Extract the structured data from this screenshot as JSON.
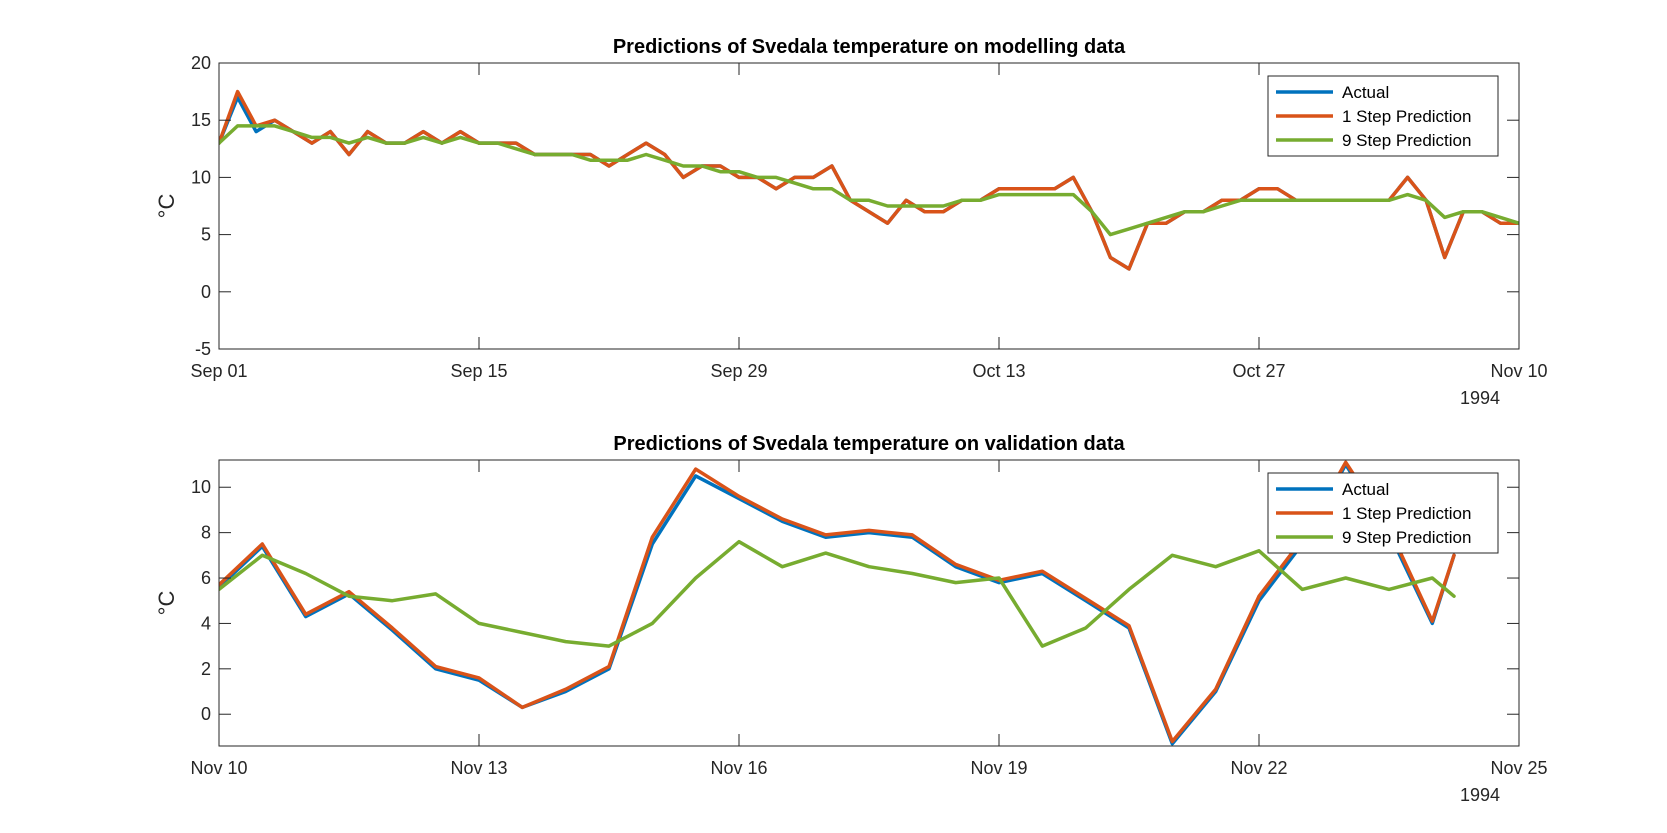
{
  "colors": {
    "actual": "#0072BD",
    "one_step": "#D95319",
    "nine_step": "#77AC30",
    "axis": "#262626"
  },
  "chart_data": [
    {
      "type": "line",
      "title": "Predictions of Svedala temperature on modelling data",
      "ylabel": "°C",
      "xlabel": "",
      "year_label": "1994",
      "xlim": [
        "Sep 01",
        "Nov 10"
      ],
      "ylim": [
        -5,
        20
      ],
      "xticks": [
        "Sep 01",
        "Sep 15",
        "Sep 29",
        "Oct 13",
        "Oct 27",
        "Nov 10"
      ],
      "yticks": [
        "20",
        "15",
        "10",
        "5",
        "0",
        "-5"
      ],
      "grid": false,
      "legend": "top-right",
      "x_sampling": "daily",
      "series": [
        {
          "name": "Actual",
          "start": "Sep 01",
          "values": [
            13,
            17,
            14,
            15,
            14,
            13,
            14,
            12,
            14,
            13,
            13,
            14,
            13,
            14,
            13,
            13,
            13,
            12,
            12,
            12,
            12,
            11,
            12,
            13,
            12,
            10,
            11,
            11,
            10,
            10,
            9,
            10,
            10,
            11,
            8,
            7,
            6,
            8,
            7,
            7,
            8,
            8,
            9,
            9,
            9,
            9,
            10,
            7,
            3,
            2,
            6,
            6,
            7,
            7,
            8,
            8,
            9,
            9,
            8,
            8,
            8,
            8,
            8,
            8,
            10,
            8,
            3,
            7,
            7,
            6,
            6
          ]
        },
        {
          "name": "1 Step Prediction",
          "start": "Sep 01",
          "values": [
            13,
            17.5,
            14.5,
            15,
            14,
            13,
            14,
            12,
            14,
            13,
            13,
            14,
            13,
            14,
            13,
            13,
            13,
            12,
            12,
            12,
            12,
            11,
            12,
            13,
            12,
            10,
            11,
            11,
            10,
            10,
            9,
            10,
            10,
            11,
            8,
            7,
            6,
            8,
            7,
            7,
            8,
            8,
            9,
            9,
            9,
            9,
            10,
            7,
            3,
            2,
            6,
            6,
            7,
            7,
            8,
            8,
            9,
            9,
            8,
            8,
            8,
            8,
            8,
            8,
            10,
            8,
            3,
            7,
            7,
            6,
            6
          ]
        },
        {
          "name": "9 Step Prediction",
          "start": "Sep 01",
          "values": [
            13,
            14.5,
            14.5,
            14.5,
            14,
            13.5,
            13.5,
            13,
            13.5,
            13,
            13,
            13.5,
            13,
            13.5,
            13,
            13,
            12.5,
            12,
            12,
            12,
            11.5,
            11.5,
            11.5,
            12,
            11.5,
            11,
            11,
            10.5,
            10.5,
            10,
            10,
            9.5,
            9,
            9,
            8,
            8,
            7.5,
            7.5,
            7.5,
            7.5,
            8,
            8,
            8.5,
            8.5,
            8.5,
            8.5,
            8.5,
            7,
            5,
            5.5,
            6,
            6.5,
            7,
            7,
            7.5,
            8,
            8,
            8,
            8,
            8,
            8,
            8,
            8,
            8,
            8.5,
            8,
            6.5,
            7,
            7,
            6.5,
            6
          ]
        }
      ]
    },
    {
      "type": "line",
      "title": "Predictions of Svedala temperature on validation data",
      "ylabel": "°C",
      "xlabel": "",
      "year_label": "1994",
      "xlim": [
        "Nov 10",
        "Nov 25"
      ],
      "ylim": [
        -1.4,
        11.2
      ],
      "xticks": [
        "Nov 10",
        "Nov 13",
        "Nov 16",
        "Nov 19",
        "Nov 22",
        "Nov 25"
      ],
      "yticks": [
        "10",
        "8",
        "6",
        "4",
        "2",
        "0"
      ],
      "grid": false,
      "legend": "top-right",
      "series": [
        {
          "name": "Actual",
          "x": [
            "Nov 10",
            "Nov 10 12:00",
            "Nov 11",
            "Nov 11 12:00",
            "Nov 12",
            "Nov 12 12:00",
            "Nov 13",
            "Nov 13 12:00",
            "Nov 14",
            "Nov 14 12:00",
            "Nov 15",
            "Nov 15 12:00",
            "Nov 16",
            "Nov 16 12:00",
            "Nov 17",
            "Nov 17 12:00",
            "Nov 18",
            "Nov 18 12:00",
            "Nov 19",
            "Nov 19 12:00",
            "Nov 20",
            "Nov 20 12:00",
            "Nov 21",
            "Nov 21 12:00",
            "Nov 22",
            "Nov 22 12:00",
            "Nov 23",
            "Nov 23 12:00",
            "Nov 24",
            "Nov 24 06:00"
          ],
          "values": [
            5.6,
            7.4,
            4.3,
            5.3,
            3.7,
            2.0,
            1.5,
            0.3,
            1.0,
            2.0,
            7.5,
            10.5,
            9.5,
            8.5,
            7.8,
            8.0,
            7.8,
            6.5,
            5.8,
            6.2,
            5.0,
            3.8,
            -1.3,
            1.0,
            5.0,
            7.5,
            11.0,
            8.0,
            4.0,
            7.0
          ]
        },
        {
          "name": "1 Step Prediction",
          "x": [
            "Nov 10",
            "Nov 10 12:00",
            "Nov 11",
            "Nov 11 12:00",
            "Nov 12",
            "Nov 12 12:00",
            "Nov 13",
            "Nov 13 12:00",
            "Nov 14",
            "Nov 14 12:00",
            "Nov 15",
            "Nov 15 12:00",
            "Nov 16",
            "Nov 16 12:00",
            "Nov 17",
            "Nov 17 12:00",
            "Nov 18",
            "Nov 18 12:00",
            "Nov 19",
            "Nov 19 12:00",
            "Nov 20",
            "Nov 20 12:00",
            "Nov 21",
            "Nov 21 12:00",
            "Nov 22",
            "Nov 22 12:00",
            "Nov 23",
            "Nov 23 12:00",
            "Nov 24",
            "Nov 24 06:00"
          ],
          "values": [
            5.7,
            7.5,
            4.4,
            5.4,
            3.8,
            2.1,
            1.6,
            0.3,
            1.1,
            2.1,
            7.8,
            10.8,
            9.6,
            8.6,
            7.9,
            8.1,
            7.9,
            6.6,
            5.9,
            6.3,
            5.1,
            3.9,
            -1.2,
            1.1,
            5.2,
            7.7,
            11.1,
            8.2,
            4.1,
            7.0
          ]
        },
        {
          "name": "9 Step Prediction",
          "x": [
            "Nov 10",
            "Nov 10 12:00",
            "Nov 11",
            "Nov 11 12:00",
            "Nov 12",
            "Nov 12 12:00",
            "Nov 13",
            "Nov 13 12:00",
            "Nov 14",
            "Nov 14 12:00",
            "Nov 15",
            "Nov 15 12:00",
            "Nov 16",
            "Nov 16 12:00",
            "Nov 17",
            "Nov 17 12:00",
            "Nov 18",
            "Nov 18 12:00",
            "Nov 19",
            "Nov 19 12:00",
            "Nov 20",
            "Nov 20 12:00",
            "Nov 21",
            "Nov 21 12:00",
            "Nov 22",
            "Nov 22 12:00",
            "Nov 23",
            "Nov 23 12:00",
            "Nov 24",
            "Nov 24 06:00"
          ],
          "values": [
            5.5,
            7.0,
            6.2,
            5.2,
            5.0,
            5.3,
            4.0,
            3.6,
            3.2,
            3.0,
            4.0,
            6.0,
            7.6,
            6.5,
            7.1,
            6.5,
            6.2,
            5.8,
            6.0,
            3.0,
            3.8,
            5.5,
            7.0,
            6.5,
            7.2,
            5.5,
            6.0,
            5.5,
            6.0,
            5.2
          ]
        }
      ]
    }
  ]
}
